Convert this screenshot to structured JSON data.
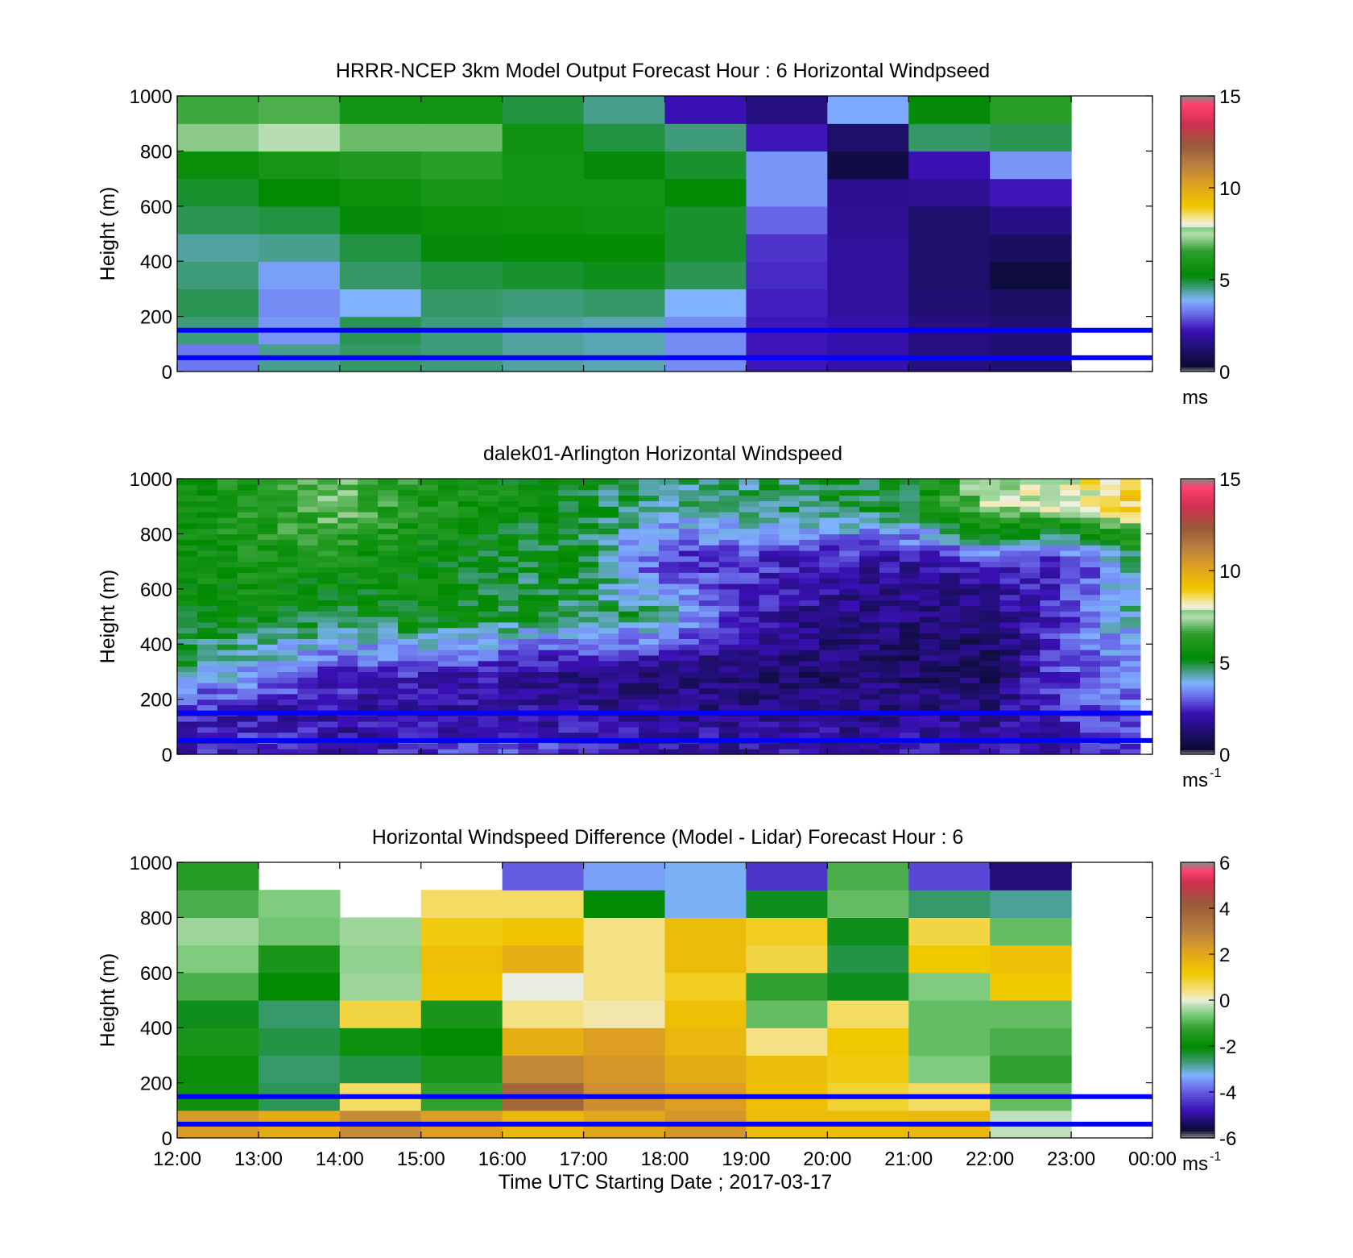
{
  "colors": {
    "reference_lines": "#0000ff",
    "missing_data": "#909090",
    "background": "#ffffff",
    "speed_colormap_stops": [
      [
        0.0,
        "#8a8a8a"
      ],
      [
        0.02,
        "#0b0b33"
      ],
      [
        0.08,
        "#1e0f6b"
      ],
      [
        0.15,
        "#3a10b5"
      ],
      [
        0.21,
        "#6a6ae8"
      ],
      [
        0.26,
        "#7fb3ff"
      ],
      [
        0.31,
        "#3a9a70"
      ],
      [
        0.35,
        "#008a00"
      ],
      [
        0.44,
        "#2fa02f"
      ],
      [
        0.52,
        "#7fcc7f"
      ],
      [
        0.5,
        "#b7ddb2"
      ],
      [
        0.53,
        "#e8ede0"
      ],
      [
        0.535,
        "#f2f0e0"
      ],
      [
        0.555,
        "#f5e6a0"
      ],
      [
        0.6,
        "#f0c800"
      ],
      [
        0.68,
        "#e0a020"
      ],
      [
        0.75,
        "#b88040"
      ],
      [
        0.82,
        "#9a5a3a"
      ],
      [
        0.9,
        "#d03050"
      ],
      [
        0.97,
        "#ff4070"
      ],
      [
        1.0,
        "#8a8a8a"
      ]
    ],
    "diff_colormap_stops": [
      [
        0.0,
        "#8a8a8a"
      ],
      [
        0.03,
        "#0b0b33"
      ],
      [
        0.1,
        "#3a10b5"
      ],
      [
        0.18,
        "#6a6ae8"
      ],
      [
        0.23,
        "#7fb3ff"
      ],
      [
        0.28,
        "#3a9a70"
      ],
      [
        0.33,
        "#008a00"
      ],
      [
        0.4,
        "#2fa02f"
      ],
      [
        0.45,
        "#7fcc7f"
      ],
      [
        0.48,
        "#b7ddb2"
      ],
      [
        0.5,
        "#e8ede0"
      ],
      [
        0.52,
        "#f5e6a0"
      ],
      [
        0.6,
        "#f0c800"
      ],
      [
        0.68,
        "#e0a020"
      ],
      [
        0.75,
        "#b88040"
      ],
      [
        0.85,
        "#9a5a3a"
      ],
      [
        0.93,
        "#d03050"
      ],
      [
        0.97,
        "#ff4070"
      ],
      [
        1.0,
        "#8a8a8a"
      ]
    ]
  },
  "chart_data": [
    {
      "type": "heatmap",
      "title": "HRRR-NCEP 3km Model Output   Forecast Hour : 6 Horizontal Windpseed",
      "ylabel": "Height (m)",
      "xlabel": "",
      "ylim": [
        0,
        1000
      ],
      "yticks": [
        "0",
        "200",
        "400",
        "600",
        "800",
        "1000"
      ],
      "xlim_hours": [
        12,
        24
      ],
      "x_hours": [
        12,
        13,
        14,
        15,
        16,
        17,
        18,
        19,
        20,
        21,
        22
      ],
      "heights_m": [
        50,
        150,
        250,
        350,
        450,
        550,
        650,
        750,
        850,
        950
      ],
      "values_ms": [
        [
          3.3,
          4.5,
          4.7,
          4.6,
          4.4,
          4.3,
          3.5,
          2.3,
          2.1,
          1.5,
          1.3
        ],
        [
          4.6,
          3.6,
          4.8,
          4.6,
          4.4,
          4.3,
          3.5,
          2.3,
          2.1,
          1.5,
          1.3
        ],
        [
          4.8,
          3.5,
          3.9,
          4.7,
          4.6,
          4.7,
          3.9,
          2.4,
          1.9,
          1.3,
          1.1
        ],
        [
          4.6,
          3.7,
          4.7,
          4.9,
          5.0,
          5.1,
          4.8,
          2.5,
          1.9,
          1.2,
          0.5
        ],
        [
          4.4,
          4.5,
          4.9,
          5.2,
          5.4,
          5.4,
          5.0,
          2.6,
          1.9,
          1.2,
          1.0
        ],
        [
          4.8,
          4.9,
          5.2,
          5.5,
          5.6,
          5.7,
          5.0,
          3.1,
          1.8,
          1.2,
          1.6
        ],
        [
          5.0,
          5.3,
          5.6,
          5.9,
          5.8,
          5.8,
          5.3,
          3.6,
          1.7,
          1.8,
          2.3
        ],
        [
          5.5,
          5.9,
          6.2,
          6.4,
          5.8,
          5.2,
          5.0,
          3.6,
          0.6,
          2.2,
          3.6
        ],
        [
          7.2,
          7.5,
          7.0,
          7.0,
          5.7,
          4.9,
          4.6,
          2.3,
          1.2,
          4.7,
          4.8
        ],
        [
          6.7,
          6.8,
          5.8,
          5.8,
          4.9,
          4.5,
          2.2,
          1.5,
          3.8,
          5.2,
          6.4
        ]
      ],
      "colorbar": {
        "min": 0,
        "max": 15,
        "ticks": [
          "0",
          "5",
          "10",
          "15"
        ],
        "unit": "ms",
        "unit_sup": ""
      },
      "reference_lines_m": [
        150,
        50
      ]
    },
    {
      "type": "heatmap",
      "title": "dalek01-Arlington  Horizontal Windspeed",
      "ylabel": "Height (m)",
      "xlabel": "",
      "ylim": [
        0,
        1000
      ],
      "yticks": [
        "0",
        "200",
        "400",
        "600",
        "800",
        "1000"
      ],
      "xlim_hours": [
        12,
        24
      ],
      "data_end_hour": 23.85,
      "keyframes_hour": [
        12,
        13,
        14,
        15,
        16,
        17,
        18,
        19,
        20,
        21,
        22,
        23,
        23.85
      ],
      "keyframes_height_m": [
        50,
        150,
        300,
        500,
        700,
        900
      ],
      "keyframes_values_ms": [
        [
          2.3,
          2.6,
          2.0,
          2.5,
          2.8,
          2.4,
          2.0,
          2.0,
          2.0,
          2.0,
          2.0,
          2.2,
          3.0
        ],
        [
          2.3,
          2.2,
          2.0,
          1.8,
          1.8,
          1.8,
          1.7,
          1.5,
          1.5,
          1.5,
          1.6,
          2.6,
          3.3
        ],
        [
          4.5,
          3.5,
          2.6,
          2.5,
          2.0,
          1.6,
          1.4,
          1.3,
          1.2,
          1.2,
          1.0,
          3.0,
          3.3
        ],
        [
          5.0,
          5.5,
          5.0,
          5.5,
          5.0,
          4.8,
          4.5,
          2.3,
          1.6,
          1.4,
          1.2,
          3.0,
          4.5
        ],
        [
          5.5,
          6.0,
          5.8,
          5.6,
          5.0,
          5.0,
          2.5,
          2.6,
          2.2,
          2.0,
          2.5,
          2.4,
          4.5
        ],
        [
          5.8,
          6.2,
          7.0,
          6.0,
          5.6,
          5.0,
          4.4,
          4.6,
          4.8,
          5.2,
          7.5,
          8.0,
          9.0
        ]
      ],
      "colorbar": {
        "min": 0,
        "max": 15,
        "ticks": [
          "0",
          "5",
          "10",
          "15"
        ],
        "unit": "ms",
        "unit_sup": "-1"
      },
      "reference_lines_m": [
        150,
        50
      ]
    },
    {
      "type": "heatmap",
      "title": "Horizontal Windspeed Difference (Model - Lidar) Forecast Hour : 6",
      "ylabel": "Height (m)",
      "xlabel": "Time UTC  Starting Date ; 2017-03-17",
      "ylim": [
        0,
        1000
      ],
      "yticks": [
        "0",
        "200",
        "400",
        "600",
        "800",
        "1000"
      ],
      "xticks": [
        "12:00",
        "13:00",
        "14:00",
        "15:00",
        "16:00",
        "17:00",
        "18:00",
        "19:00",
        "20:00",
        "21:00",
        "22:00",
        "23:00",
        "00:00"
      ],
      "xlim_hours": [
        12,
        24
      ],
      "x_hours": [
        12,
        13,
        14,
        15,
        16,
        17,
        18,
        19,
        20,
        21,
        22
      ],
      "heights_m": [
        50,
        150,
        250,
        350,
        450,
        550,
        650,
        750,
        850,
        950
      ],
      "values_ms": [
        [
          2.3,
          1.9,
          2.7,
          2.2,
          1.6,
          2.0,
          2.4,
          1.5,
          1.5,
          1.6,
          -0.2
        ],
        [
          -1.8,
          -2.5,
          0.6,
          -1.2,
          3.8,
          2.6,
          2.2,
          1.4,
          0.9,
          0.6,
          -0.8
        ],
        [
          -1.9,
          -2.6,
          -2.4,
          -1.6,
          2.8,
          2.4,
          1.9,
          1.5,
          1.1,
          -0.6,
          -1.2
        ],
        [
          -1.6,
          -2.4,
          -1.8,
          -2.0,
          1.8,
          2.2,
          1.6,
          0.4,
          1.2,
          -0.8,
          -1.0
        ],
        [
          -2.2,
          -2.6,
          0.8,
          -1.6,
          0.4,
          0.2,
          1.4,
          -0.8,
          0.6,
          -0.8,
          -0.8
        ],
        [
          -1.0,
          -2.0,
          -0.4,
          1.3,
          0.0,
          0.4,
          1.0,
          -1.2,
          -2.2,
          -0.6,
          1.2
        ],
        [
          -0.6,
          -1.6,
          -0.5,
          1.4,
          1.8,
          0.4,
          1.5,
          0.8,
          -2.4,
          1.2,
          1.4
        ],
        [
          -0.4,
          -0.7,
          -0.4,
          1.1,
          1.3,
          0.4,
          1.5,
          1.0,
          -2.2,
          0.8,
          -0.8
        ],
        [
          -1.0,
          -0.6,
          null,
          0.6,
          0.6,
          -2.0,
          -3.2,
          -2.2,
          -0.8,
          -2.6,
          -2.8
        ],
        [
          -1.4,
          null,
          null,
          null,
          -4.0,
          -3.4,
          -3.2,
          -4.4,
          -1.0,
          -4.2,
          -5.2
        ]
      ],
      "colorbar": {
        "min": -6,
        "max": 6,
        "ticks": [
          "-6",
          "-4",
          "-2",
          "0",
          "2",
          "4",
          "6"
        ],
        "unit": "ms",
        "unit_sup": "-1"
      },
      "reference_lines_m": [
        150,
        50
      ]
    }
  ]
}
